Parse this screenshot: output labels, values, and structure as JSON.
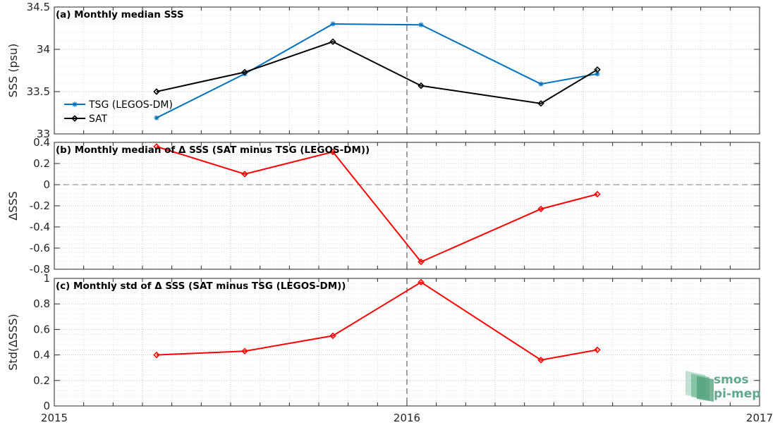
{
  "chart_data": [
    {
      "id": "a",
      "type": "line",
      "title": "(a) Monthly median SSS",
      "ylabel": "SSS (psu)",
      "ylim": [
        33,
        34.5
      ],
      "yticks": [
        33,
        33.5,
        34,
        34.5
      ],
      "yticklabels": [
        "33",
        "33.5",
        "34",
        "34.5"
      ],
      "grid": true,
      "legend_position": "left",
      "series": [
        {
          "name": "TSG (LEGOS-DM)",
          "color": "#0072BD",
          "marker": "star",
          "x": [
            2015.29,
            2015.54,
            2015.79,
            2016.04,
            2016.38,
            2016.54
          ],
          "y": [
            33.19,
            33.71,
            34.3,
            34.29,
            33.59,
            33.71
          ]
        },
        {
          "name": "SAT",
          "color": "#000000",
          "marker": "diamond",
          "x": [
            2015.29,
            2015.54,
            2015.79,
            2016.04,
            2016.38,
            2016.54
          ],
          "y": [
            33.5,
            33.73,
            34.09,
            33.57,
            33.36,
            33.76
          ]
        }
      ]
    },
    {
      "id": "b",
      "type": "line",
      "title": "(b) Monthly median of Δ SSS (SAT minus TSG (LEGOS-DM))",
      "ylabel": "ΔSSS",
      "ylim": [
        -0.8,
        0.4
      ],
      "yticks": [
        -0.8,
        -0.6,
        -0.4,
        -0.2,
        0,
        0.2,
        0.4
      ],
      "yticklabels": [
        "-0.8",
        "-0.6",
        "-0.4",
        "-0.2",
        "0",
        "0.2",
        "0.4"
      ],
      "grid": true,
      "zero_line": true,
      "series": [
        {
          "color": "#FF0000",
          "marker": "diamond",
          "x": [
            2015.29,
            2015.54,
            2015.79,
            2016.04,
            2016.38,
            2016.54
          ],
          "y": [
            0.36,
            0.1,
            0.31,
            -0.73,
            -0.23,
            -0.09
          ]
        }
      ]
    },
    {
      "id": "c",
      "type": "line",
      "title": "(c) Monthly std of Δ SSS (SAT minus TSG (LEGOS-DM))",
      "ylabel": "Std(ΔSSS)",
      "ylim": [
        0,
        1
      ],
      "yticks": [
        0,
        0.2,
        0.4,
        0.6,
        0.8,
        1
      ],
      "yticklabels": [
        "0",
        "0.2",
        "0.4",
        "0.6",
        "0.8",
        "1"
      ],
      "grid": true,
      "series": [
        {
          "color": "#FF0000",
          "marker": "diamond",
          "x": [
            2015.29,
            2015.54,
            2015.79,
            2016.04,
            2016.38,
            2016.54
          ],
          "y": [
            0.4,
            0.43,
            0.55,
            0.97,
            0.36,
            0.44
          ]
        }
      ]
    }
  ],
  "x_axis": {
    "xlim": [
      2015,
      2017
    ],
    "ticks": [
      2015,
      2016,
      2017
    ],
    "ticklabels": [
      "2015",
      "2016",
      "2017"
    ],
    "vline": 2016.0
  },
  "logo": {
    "line1": "smos",
    "line2": "pi-mep"
  }
}
